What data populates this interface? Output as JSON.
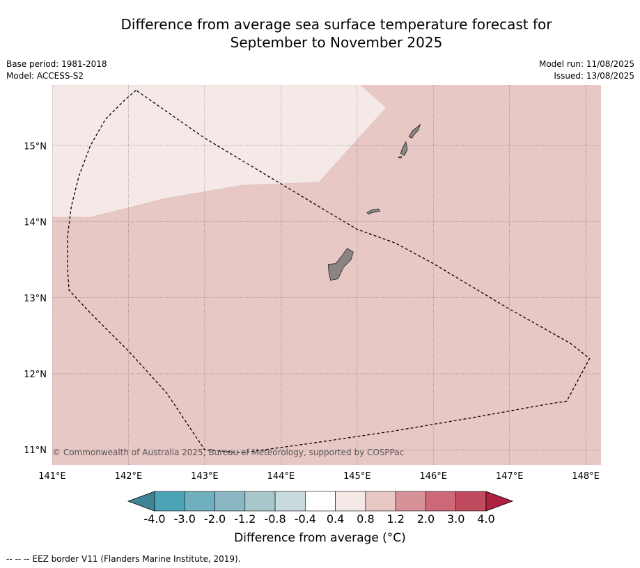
{
  "title": {
    "line1": "Difference from average sea surface temperature forecast for",
    "line2": "September to November 2025"
  },
  "meta": {
    "base_period": "Base period: 1981-2018",
    "model": "Model: ACCESS-S2",
    "model_run": "Model run: 11/08/2025",
    "issued": "Issued: 13/08/2025"
  },
  "map": {
    "extent": {
      "lon_min": 141.0,
      "lon_max": 148.2,
      "lat_min": 10.8,
      "lat_max": 15.8
    },
    "lat_ticks": [
      {
        "value": 15,
        "label": "15°N"
      },
      {
        "value": 14,
        "label": "14°N"
      },
      {
        "value": 13,
        "label": "13°N"
      },
      {
        "value": 12,
        "label": "12°N"
      },
      {
        "value": 11,
        "label": "11°N"
      }
    ],
    "lon_ticks": [
      {
        "value": 141,
        "label": "141°E"
      },
      {
        "value": 142,
        "label": "142°E"
      },
      {
        "value": 143,
        "label": "143°E"
      },
      {
        "value": 144,
        "label": "144°E"
      },
      {
        "value": 145,
        "label": "145°E"
      },
      {
        "value": 146,
        "label": "146°E"
      },
      {
        "value": 147,
        "label": "147°E"
      },
      {
        "value": 148,
        "label": "148°E"
      }
    ],
    "anomaly_regions": [
      {
        "range": "0.4 to 0.8",
        "color": "#f5e9e8",
        "boundary": [
          [
            141.0,
            15.8
          ],
          [
            145.05,
            15.8
          ],
          [
            145.38,
            15.5
          ],
          [
            144.5,
            14.52
          ],
          [
            143.5,
            14.48
          ],
          [
            142.5,
            14.31
          ],
          [
            141.5,
            14.06
          ],
          [
            141.0,
            14.06
          ]
        ]
      }
    ],
    "background_anomaly": {
      "range": "0.8 to 1.2",
      "color": "#e8c8c4"
    },
    "eez_border": [
      [
        142.1,
        15.73
      ],
      [
        141.95,
        15.6
      ],
      [
        141.7,
        15.35
      ],
      [
        141.5,
        15.0
      ],
      [
        141.35,
        14.6
      ],
      [
        141.25,
        14.2
      ],
      [
        141.2,
        13.8
      ],
      [
        141.2,
        13.4
      ],
      [
        141.22,
        13.1
      ],
      [
        141.5,
        12.8
      ],
      [
        142.0,
        12.3
      ],
      [
        142.5,
        11.75
      ],
      [
        143.0,
        11.0
      ],
      [
        143.5,
        10.96
      ],
      [
        144.5,
        11.1
      ],
      [
        145.5,
        11.25
      ],
      [
        146.5,
        11.42
      ],
      [
        147.5,
        11.6
      ],
      [
        147.75,
        11.64
      ],
      [
        148.05,
        12.2
      ],
      [
        147.8,
        12.4
      ],
      [
        147.0,
        12.85
      ],
      [
        146.5,
        13.15
      ],
      [
        146.0,
        13.45
      ],
      [
        145.5,
        13.72
      ],
      [
        145.0,
        13.9
      ],
      [
        144.0,
        14.5
      ],
      [
        143.0,
        15.1
      ],
      [
        142.1,
        15.73
      ]
    ],
    "islands": [
      {
        "name": "Guam",
        "outline": [
          [
            144.62,
            13.44
          ],
          [
            144.72,
            13.45
          ],
          [
            144.8,
            13.55
          ],
          [
            144.87,
            13.65
          ],
          [
            144.95,
            13.6
          ],
          [
            144.92,
            13.5
          ],
          [
            144.82,
            13.4
          ],
          [
            144.75,
            13.25
          ],
          [
            144.65,
            13.23
          ],
          [
            144.63,
            13.33
          ]
        ]
      },
      {
        "name": "Rota",
        "outline": [
          [
            145.13,
            14.12
          ],
          [
            145.2,
            14.16
          ],
          [
            145.28,
            14.17
          ],
          [
            145.3,
            14.14
          ],
          [
            145.2,
            14.12
          ],
          [
            145.15,
            14.1
          ]
        ]
      },
      {
        "name": "Tinian",
        "outline": [
          [
            145.57,
            14.9
          ],
          [
            145.6,
            14.98
          ],
          [
            145.64,
            15.05
          ],
          [
            145.66,
            14.95
          ],
          [
            145.62,
            14.87
          ]
        ]
      },
      {
        "name": "Saipan",
        "outline": [
          [
            145.68,
            15.12
          ],
          [
            145.73,
            15.2
          ],
          [
            145.83,
            15.28
          ],
          [
            145.8,
            15.2
          ],
          [
            145.75,
            15.15
          ],
          [
            145.72,
            15.1
          ]
        ]
      },
      {
        "name": "Aguijan",
        "outline": [
          [
            145.54,
            14.85
          ],
          [
            145.58,
            14.86
          ],
          [
            145.58,
            14.84
          ],
          [
            145.55,
            14.84
          ]
        ]
      }
    ],
    "copyright": "© Commonwealth of Australia 2025, Bureau of Meteorology, supported by COSPPac"
  },
  "colorbar": {
    "title": "Difference from average (°C)",
    "bins": [
      {
        "color": "#3f8493"
      },
      {
        "color": "#4ba3b6"
      },
      {
        "color": "#6fafbe"
      },
      {
        "color": "#8ab7c3"
      },
      {
        "color": "#a8c7cb"
      },
      {
        "color": "#c9dadd"
      },
      {
        "color": "#ffffff"
      },
      {
        "color": "#f5e9e8"
      },
      {
        "color": "#e8c8c4"
      },
      {
        "color": "#d79199"
      },
      {
        "color": "#cc6877"
      },
      {
        "color": "#c14b5e"
      },
      {
        "color": "#b02040"
      }
    ],
    "tick_labels": [
      "-4.0",
      "-3.0",
      "-2.0",
      "-1.2",
      "-0.8",
      "-0.4",
      "0.4",
      "0.8",
      "1.2",
      "2.0",
      "3.0",
      "4.0"
    ]
  },
  "footnote": "-- -- -- EEZ border V11 (Flanders Marine Institute, 2019)."
}
